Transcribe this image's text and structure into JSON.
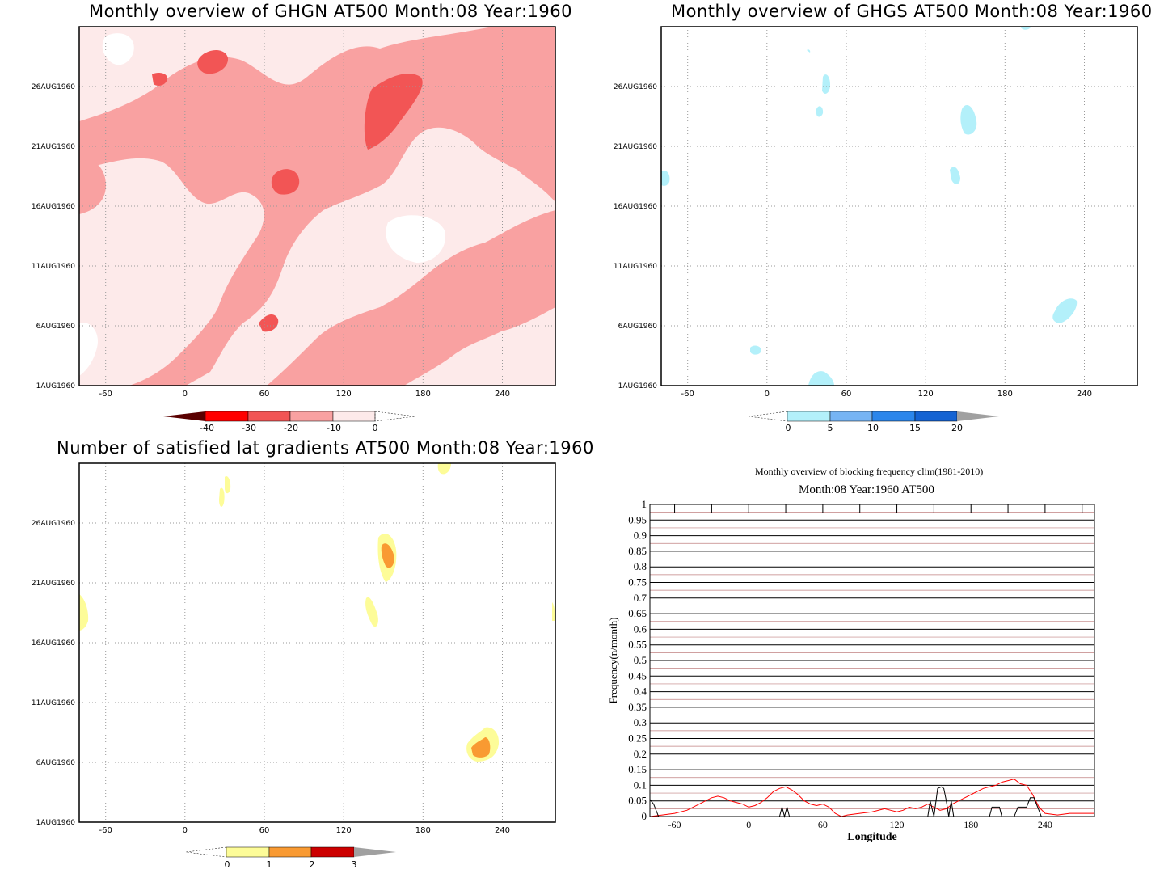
{
  "chart_data": [
    {
      "type": "heatmap",
      "title": "Monthly overview of GHGN AT500 Month:08 Year:1960",
      "xticks": [
        "-60",
        "0",
        "60",
        "120",
        "180",
        "240"
      ],
      "xtick_values": [
        -60,
        0,
        60,
        120,
        180,
        240
      ],
      "yticks": [
        "1AUG1960",
        "6AUG1960",
        "11AUG1960",
        "16AUG1960",
        "21AUG1960",
        "26AUG1960"
      ],
      "ytick_values": [
        1,
        6,
        11,
        16,
        21,
        26
      ],
      "xlim": [
        -80,
        280
      ],
      "ylim": [
        1,
        31
      ],
      "grid": true,
      "colorbar": {
        "labels": [
          "-40",
          "-30",
          "-20",
          "-10",
          "0"
        ],
        "colors": [
          "#5a0000",
          "#ff0000",
          "#f25555",
          "#f9a1a1",
          "#fdeaea"
        ],
        "extend_low_color": "#5a0000",
        "extend_high": "open"
      }
    },
    {
      "type": "heatmap",
      "title": "Monthly overview of GHGS AT500 Month:08 Year:1960",
      "xticks": [
        "-60",
        "0",
        "60",
        "120",
        "180",
        "240"
      ],
      "xtick_values": [
        -60,
        0,
        60,
        120,
        180,
        240
      ],
      "yticks": [
        "1AUG1960",
        "6AUG1960",
        "11AUG1960",
        "16AUG1960",
        "21AUG1960",
        "26AUG1960"
      ],
      "ytick_values": [
        1,
        6,
        11,
        16,
        21,
        26
      ],
      "xlim": [
        -80,
        280
      ],
      "ylim": [
        1,
        31
      ],
      "grid": true,
      "colorbar": {
        "labels": [
          "0",
          "5",
          "10",
          "15",
          "20"
        ],
        "colors": [
          "#b3f0fa",
          "#76b4f4",
          "#2b86eb",
          "#1463d3"
        ],
        "extend_low": "open",
        "extend_high_color": "#a0a0a0"
      }
    },
    {
      "type": "heatmap",
      "title": "Number of satisfied lat gradients AT500 Month:08 Year:1960",
      "xticks": [
        "-60",
        "0",
        "60",
        "120",
        "180",
        "240"
      ],
      "xtick_values": [
        -60,
        0,
        60,
        120,
        180,
        240
      ],
      "yticks": [
        "1AUG1960",
        "6AUG1960",
        "11AUG1960",
        "16AUG1960",
        "21AUG1960",
        "26AUG1960"
      ],
      "ytick_values": [
        1,
        6,
        11,
        16,
        21,
        26
      ],
      "xlim": [
        -80,
        280
      ],
      "ylim": [
        1,
        31
      ],
      "grid": true,
      "colorbar": {
        "labels": [
          "0",
          "1",
          "2",
          "3"
        ],
        "colors": [
          "#fdfc98",
          "#f99a32",
          "#cc0000"
        ],
        "extend_low": "open",
        "extend_high_color": "#a0a0a0"
      }
    },
    {
      "type": "line",
      "title": "Monthly overview of blocking frequency clim(1981-2010)",
      "subtitle": "Month:08 Year:1960  AT500",
      "xlabel": "Longitude",
      "ylabel": "Frequency(n/month)",
      "xlim": [
        -80,
        280
      ],
      "ylim": [
        0,
        1
      ],
      "xticks": [
        "-60",
        "0",
        "60",
        "120",
        "180",
        "240"
      ],
      "xtick_values": [
        -60,
        0,
        60,
        120,
        180,
        240
      ],
      "yticks": [
        "0",
        "0.05",
        "0.1",
        "0.15",
        "0.2",
        "0.25",
        "0.3",
        "0.35",
        "0.4",
        "0.45",
        "0.5",
        "0.55",
        "0.6",
        "0.65",
        "0.7",
        "0.75",
        "0.8",
        "0.85",
        "0.9",
        "0.95",
        "1"
      ],
      "grid": true,
      "series": [
        {
          "color": "#ff0000",
          "x": [
            -80,
            -70,
            -60,
            -50,
            -40,
            -30,
            -25,
            -20,
            -15,
            -10,
            -5,
            0,
            5,
            10,
            15,
            20,
            25,
            30,
            35,
            40,
            45,
            50,
            55,
            60,
            65,
            70,
            75,
            80,
            90,
            100,
            110,
            115,
            120,
            125,
            130,
            135,
            140,
            145,
            150,
            155,
            160,
            165,
            170,
            175,
            180,
            185,
            190,
            195,
            200,
            205,
            210,
            215,
            220,
            225,
            230,
            235,
            240,
            250,
            260,
            270,
            280
          ],
          "y": [
            0.0,
            0.005,
            0.01,
            0.02,
            0.04,
            0.06,
            0.065,
            0.06,
            0.05,
            0.045,
            0.04,
            0.03,
            0.035,
            0.045,
            0.06,
            0.08,
            0.09,
            0.095,
            0.085,
            0.07,
            0.05,
            0.04,
            0.035,
            0.04,
            0.03,
            0.01,
            0.0,
            0.005,
            0.01,
            0.015,
            0.025,
            0.02,
            0.015,
            0.02,
            0.03,
            0.025,
            0.03,
            0.04,
            0.03,
            0.02,
            0.025,
            0.04,
            0.05,
            0.06,
            0.07,
            0.08,
            0.09,
            0.095,
            0.1,
            0.11,
            0.115,
            0.12,
            0.105,
            0.1,
            0.07,
            0.03,
            0.01,
            0.005,
            0.01,
            0.01,
            0.01
          ]
        },
        {
          "color": "#000000",
          "x": [
            -80,
            -77,
            -73,
            -70,
            25,
            27,
            29,
            31,
            33,
            35,
            145,
            147,
            150,
            153,
            156,
            158,
            160,
            162,
            164,
            166,
            195,
            197,
            199,
            201,
            203,
            205,
            207,
            215,
            218,
            221,
            225,
            228,
            231,
            234,
            237
          ],
          "y": [
            0.055,
            0.04,
            0.0,
            0.0,
            0.0,
            0.03,
            0.0,
            0.03,
            0.0,
            0.0,
            0.0,
            0.05,
            0.0,
            0.09,
            0.095,
            0.09,
            0.05,
            0.0,
            0.05,
            0.0,
            0.0,
            0.03,
            0.03,
            0.03,
            0.03,
            0.0,
            0.0,
            0.0,
            0.03,
            0.03,
            0.03,
            0.06,
            0.06,
            0.03,
            0.0
          ]
        }
      ]
    }
  ]
}
